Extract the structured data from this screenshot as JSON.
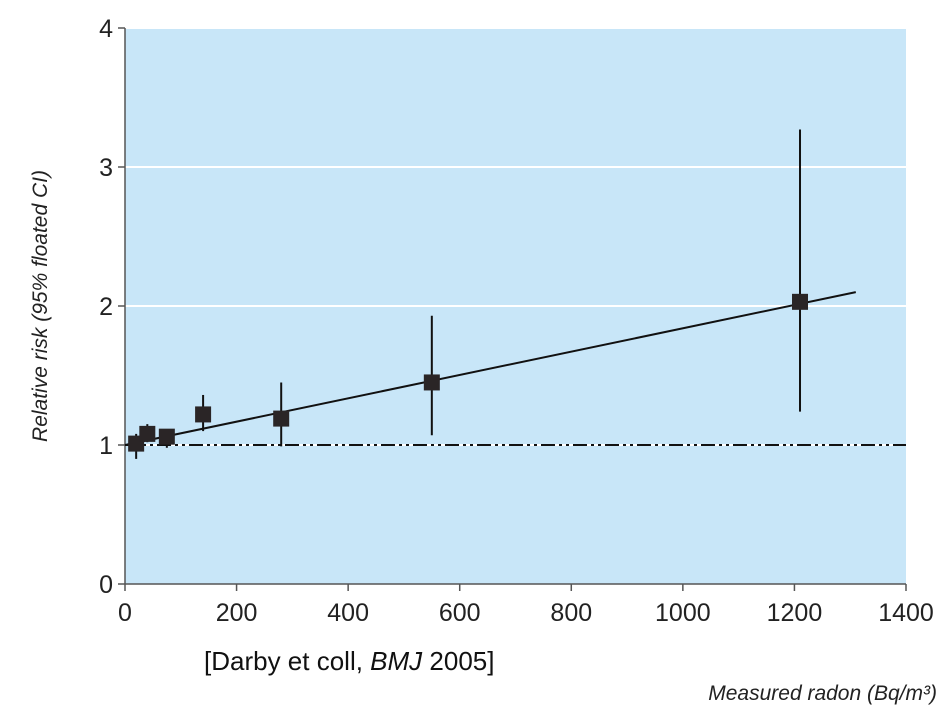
{
  "chart_data": {
    "type": "scatter",
    "xlabel": "Measured radon (Bq/m³)",
    "ylabel": "Relative risk (95% floated CI)",
    "xlim": [
      0,
      1400
    ],
    "ylim": [
      0,
      4
    ],
    "x_ticks": [
      0,
      200,
      400,
      600,
      800,
      1000,
      1200,
      1400
    ],
    "y_ticks": [
      0,
      1,
      2,
      3,
      4
    ],
    "grid": "horizontal",
    "background_color": "#c8e6f8",
    "grid_color": "#ffffff",
    "points": [
      {
        "x": 20,
        "y": 1.01,
        "ci_low": 0.9,
        "ci_high": 1.08
      },
      {
        "x": 40,
        "y": 1.08,
        "ci_low": 1.02,
        "ci_high": 1.15
      },
      {
        "x": 75,
        "y": 1.06,
        "ci_low": 0.98,
        "ci_high": 1.1
      },
      {
        "x": 140,
        "y": 1.22,
        "ci_low": 1.1,
        "ci_high": 1.36
      },
      {
        "x": 280,
        "y": 1.19,
        "ci_low": 0.99,
        "ci_high": 1.45
      },
      {
        "x": 550,
        "y": 1.45,
        "ci_low": 1.07,
        "ci_high": 1.93
      },
      {
        "x": 1210,
        "y": 2.03,
        "ci_low": 1.24,
        "ci_high": 3.27
      }
    ],
    "fit_line": {
      "x": [
        0,
        1310
      ],
      "y": [
        1.0,
        2.1
      ]
    },
    "reference_line": {
      "y": 1.0,
      "style": "dash-dot"
    }
  },
  "citation": {
    "prefix": "[Darby et coll, ",
    "journal": "BMJ",
    "suffix": " 2005]"
  }
}
